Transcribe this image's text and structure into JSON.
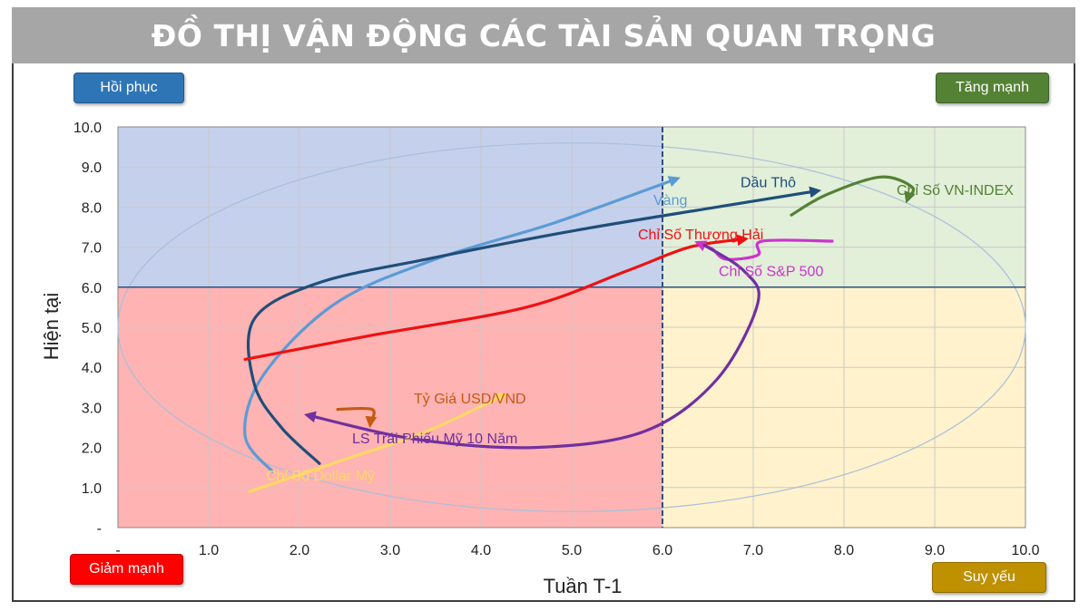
{
  "page": {
    "title": "ĐỒ THỊ VẬN ĐỘNG CÁC TÀI SẢN QUAN TRỌNG"
  },
  "quadrant_buttons": {
    "top_left": {
      "label": "Hồi phục",
      "color": "#2e75b6"
    },
    "top_right": {
      "label": "Tăng mạnh",
      "color": "#548235"
    },
    "bottom_left": {
      "label": "Giảm mạnh",
      "color": "#ff0000"
    },
    "bottom_right": {
      "label": "Suy yếu",
      "color": "#bf9000"
    }
  },
  "chart_data": {
    "type": "line",
    "xlabel": "Tuần T-1",
    "ylabel": "Hiện tại",
    "xlim": [
      0,
      10
    ],
    "ylim": [
      0,
      10
    ],
    "x_ticks": [
      "-",
      "1.0",
      "2.0",
      "3.0",
      "4.0",
      "5.0",
      "6.0",
      "7.0",
      "8.0",
      "9.0",
      "10.0"
    ],
    "y_ticks": [
      "-",
      "1.0",
      "2.0",
      "3.0",
      "4.0",
      "5.0",
      "6.0",
      "7.0",
      "8.0",
      "9.0",
      "10.0"
    ],
    "quadrant_split": {
      "x": 6,
      "y": 6
    },
    "quadrant_colors": {
      "top_left": "#c5d0ec",
      "top_right": "#e2efd9",
      "bottom_left": "#ffb3b3",
      "bottom_right": "#fff2cc"
    },
    "series": [
      {
        "name": "Vàng",
        "color": "#5b9bd5",
        "points": [
          [
            1.7,
            1.4
          ],
          [
            1.4,
            2.3
          ],
          [
            1.6,
            3.8
          ],
          [
            2.4,
            5.6
          ],
          [
            3.5,
            6.7
          ],
          [
            4.8,
            7.6
          ],
          [
            6.15,
            8.7
          ]
        ],
        "label_pos": [
          5.9,
          8.05
        ]
      },
      {
        "name": "Dầu Thô",
        "color": "#1f4e79",
        "points": [
          [
            2.22,
            1.6
          ],
          [
            1.8,
            2.5
          ],
          [
            1.5,
            3.6
          ],
          [
            1.5,
            5.2
          ],
          [
            2.2,
            6.1
          ],
          [
            3.4,
            6.7
          ],
          [
            5.0,
            7.4
          ],
          [
            6.6,
            8.0
          ],
          [
            7.7,
            8.4
          ]
        ],
        "label_pos": [
          6.86,
          8.5
        ]
      },
      {
        "name": "Chỉ Số VN-INDEX",
        "color": "#538135",
        "points": [
          [
            7.42,
            7.8
          ],
          [
            7.8,
            8.3
          ],
          [
            8.4,
            8.75
          ],
          [
            8.75,
            8.5
          ],
          [
            8.7,
            8.2
          ]
        ],
        "label_pos": [
          8.58,
          8.3
        ]
      },
      {
        "name": "Chỉ Số Thượng Hải",
        "color": "#ee1111",
        "points": [
          [
            1.4,
            4.2
          ],
          [
            2.8,
            4.8
          ],
          [
            4.5,
            5.5
          ],
          [
            5.6,
            6.4
          ],
          [
            6.3,
            7.0
          ],
          [
            6.9,
            7.2
          ]
        ],
        "label_pos": [
          5.73,
          7.2
        ]
      },
      {
        "name": "Chỉ Số S&P 500",
        "color": "#cc33cc",
        "points": [
          [
            7.87,
            7.15
          ],
          [
            7.1,
            7.15
          ],
          [
            7.05,
            6.8
          ],
          [
            6.7,
            6.7
          ],
          [
            6.55,
            6.95
          ],
          [
            6.4,
            7.1
          ]
        ],
        "label_pos": [
          6.62,
          6.28
        ]
      },
      {
        "name": "LS Trái Phiếu Mỹ 10 Năm",
        "color": "#7030a0",
        "points": [
          [
            6.46,
            7.05
          ],
          [
            6.9,
            6.4
          ],
          [
            7.05,
            5.6
          ],
          [
            6.6,
            3.7
          ],
          [
            5.8,
            2.4
          ],
          [
            4.6,
            2.0
          ],
          [
            3.3,
            2.2
          ],
          [
            2.1,
            2.8
          ]
        ],
        "label_pos": [
          2.58,
          2.1
        ]
      },
      {
        "name": "Tỷ Giá USD/VND",
        "color": "#c55a11",
        "points": [
          [
            2.42,
            2.95
          ],
          [
            2.8,
            2.95
          ],
          [
            2.78,
            2.6
          ]
        ],
        "label_pos": [
          3.26,
          3.1
        ]
      },
      {
        "name": "Chỉ Số Dollar Mỹ",
        "color": "#ffd966",
        "points": [
          [
            1.45,
            0.9
          ],
          [
            2.5,
            1.7
          ],
          [
            3.4,
            2.4
          ],
          [
            4.25,
            3.3
          ]
        ],
        "label_pos": [
          1.63,
          1.18
        ]
      }
    ]
  }
}
